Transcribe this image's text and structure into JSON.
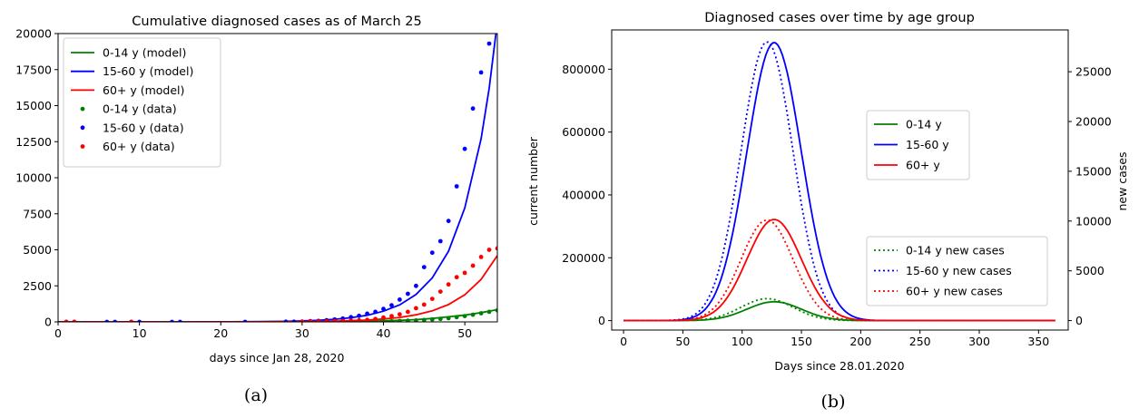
{
  "colors": {
    "green": "#008000",
    "blue": "#0000ff",
    "red": "#ff0000"
  },
  "chart_data": [
    {
      "type": "line",
      "title": "Cumulative diagnosed cases as of March 25",
      "xlabel": "days since Jan 28, 2020",
      "ylabel": "",
      "xlim": [
        0,
        54
      ],
      "ylim": [
        0,
        20000
      ],
      "xticks": [
        0,
        10,
        20,
        30,
        40,
        50
      ],
      "yticks": [
        0,
        2500,
        5000,
        7500,
        10000,
        12500,
        15000,
        17500,
        20000
      ],
      "caption": "(a)",
      "legend_location": "upper-left",
      "model_series": [
        {
          "name": "0-14 y (model)",
          "color": "#008000",
          "x": [
            0,
            5,
            10,
            15,
            20,
            25,
            28,
            30,
            32,
            34,
            36,
            38,
            40,
            42,
            44,
            46,
            48,
            50,
            52,
            54
          ],
          "values": [
            0,
            0,
            0,
            0,
            0,
            2,
            5,
            8,
            13,
            20,
            30,
            46,
            70,
            105,
            160,
            240,
            350,
            470,
            640,
            850
          ]
        },
        {
          "name": "15-60 y (model)",
          "color": "#0000ff",
          "x": [
            0,
            5,
            10,
            15,
            20,
            25,
            28,
            30,
            32,
            34,
            36,
            38,
            40,
            42,
            44,
            46,
            48,
            50,
            52,
            53,
            54
          ],
          "values": [
            0,
            0,
            0,
            0,
            5,
            20,
            40,
            70,
            110,
            180,
            290,
            460,
            740,
            1180,
            1900,
            3050,
            4900,
            7900,
            12700,
            16200,
            20800
          ]
        },
        {
          "name": "60+ y (model)",
          "color": "#ff0000",
          "x": [
            0,
            5,
            10,
            15,
            20,
            25,
            28,
            30,
            32,
            34,
            36,
            38,
            40,
            42,
            44,
            46,
            48,
            50,
            52,
            54
          ],
          "values": [
            0,
            0,
            0,
            0,
            1,
            6,
            12,
            20,
            32,
            50,
            80,
            125,
            200,
            310,
            490,
            770,
            1200,
            1880,
            2950,
            4600
          ]
        }
      ],
      "data_series": [
        {
          "name": "0-14 y (data)",
          "color": "#008000",
          "x": [
            31,
            32,
            33,
            34,
            35,
            36,
            37,
            38,
            39,
            40,
            41,
            42,
            43,
            44,
            45,
            46,
            47,
            48,
            49,
            50,
            51,
            52,
            53,
            54
          ],
          "values": [
            5,
            5,
            6,
            8,
            10,
            12,
            15,
            20,
            28,
            35,
            45,
            60,
            80,
            100,
            130,
            170,
            210,
            260,
            330,
            400,
            500,
            600,
            700,
            800
          ]
        },
        {
          "name": "15-60 y (data)",
          "color": "#0000ff",
          "x": [
            1,
            2,
            6,
            7,
            9,
            10,
            14,
            15,
            23,
            28,
            29,
            30,
            31,
            32,
            33,
            34,
            35,
            36,
            37,
            38,
            39,
            40,
            41,
            42,
            43,
            44,
            45,
            46,
            47,
            48,
            49,
            50,
            51,
            52,
            53
          ],
          "values": [
            0,
            0,
            0,
            0,
            0,
            0,
            0,
            0,
            0,
            10,
            15,
            20,
            50,
            70,
            120,
            170,
            230,
            330,
            420,
            570,
            700,
            900,
            1150,
            1550,
            1950,
            2500,
            3800,
            4800,
            5600,
            7000,
            9400,
            12000,
            14800,
            17300,
            19300
          ]
        },
        {
          "name": "60+ y (data)",
          "color": "#ff0000",
          "x": [
            1,
            2,
            9,
            30,
            31,
            32,
            33,
            34,
            35,
            36,
            37,
            38,
            39,
            40,
            41,
            42,
            43,
            44,
            45,
            46,
            47,
            48,
            49,
            50,
            51,
            52,
            53,
            54
          ],
          "values": [
            0,
            0,
            0,
            10,
            20,
            25,
            35,
            50,
            65,
            85,
            110,
            140,
            200,
            300,
            400,
            520,
            700,
            950,
            1200,
            1600,
            2100,
            2600,
            3100,
            3400,
            3900,
            4500,
            5000,
            5100
          ]
        }
      ]
    },
    {
      "type": "line",
      "title": "Diagnosed cases over time by age group",
      "xlabel": "Days since  28.01.2020",
      "ylabel": "current number",
      "y2label": "new cases",
      "xlim": [
        -10,
        375
      ],
      "ylim": [
        -30000,
        925000
      ],
      "y2lim": [
        -950,
        29200
      ],
      "xticks": [
        0,
        50,
        100,
        150,
        200,
        250,
        300,
        350
      ],
      "yticks": [
        0,
        200000,
        400000,
        600000,
        800000
      ],
      "y2ticks": [
        0,
        5000,
        10000,
        15000,
        20000,
        25000
      ],
      "caption": "(b)",
      "legend_location": "center-right",
      "current_series": [
        {
          "name": "0-14 y",
          "color": "#008000",
          "peak_x": 127,
          "sigma": 23,
          "peak_value": 60000
        },
        {
          "name": "15-60 y",
          "color": "#0000ff",
          "peak_x": 127,
          "sigma": 23,
          "peak_value": 885000
        },
        {
          "name": "60+ y",
          "color": "#ff0000",
          "peak_x": 127,
          "sigma": 23,
          "peak_value": 322000
        }
      ],
      "new_cases_series": [
        {
          "name": "0-14 y new cases",
          "color": "#008000",
          "peak_x": 121,
          "sigma": 22,
          "peak_value": 2200
        },
        {
          "name": "15-60 y new cases",
          "color": "#0000ff",
          "peak_x": 121,
          "sigma": 22,
          "peak_value": 28000
        },
        {
          "name": "60+ y new cases",
          "color": "#ff0000",
          "peak_x": 121,
          "sigma": 22,
          "peak_value": 10100
        }
      ]
    }
  ]
}
